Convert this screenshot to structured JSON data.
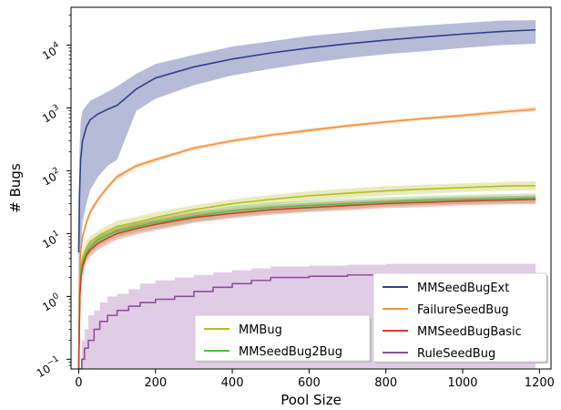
{
  "chart_data": {
    "type": "line",
    "xlabel": "Pool Size",
    "ylabel": "# Bugs",
    "xlim": [
      -20,
      1230
    ],
    "ylim": [
      0.07,
      40000
    ],
    "yscale": "log",
    "x_ticks": [
      0,
      200,
      400,
      600,
      800,
      1000,
      1200
    ],
    "x_tick_labels": [
      "0",
      "200",
      "400",
      "600",
      "800",
      "1000",
      "1200"
    ],
    "y_ticks": [
      0.1,
      1,
      10,
      100,
      1000,
      10000
    ],
    "y_tick_labels": [
      {
        "base": "10",
        "exp": "−1"
      },
      {
        "base": "10",
        "exp": "0"
      },
      {
        "base": "10",
        "exp": "1"
      },
      {
        "base": "10",
        "exp": "2"
      },
      {
        "base": "10",
        "exp": "3"
      },
      {
        "base": "10",
        "exp": "4"
      }
    ],
    "grid": false,
    "legends": [
      {
        "placement": "lower-center",
        "entries": [
          "MMBug",
          "MMSeedBug2Bug"
        ]
      },
      {
        "placement": "lower-right",
        "entries": [
          "MMSeedBugExt",
          "FailureSeedBug",
          "MMSeedBugBasic",
          "RuleSeedBug"
        ]
      }
    ],
    "series": [
      {
        "name": "MMSeedBugExt",
        "color": "#2f3f8c",
        "x": [
          0,
          2,
          5,
          10,
          20,
          30,
          50,
          75,
          100,
          150,
          200,
          300,
          400,
          500,
          600,
          700,
          800,
          900,
          1000,
          1100,
          1190
        ],
        "y": [
          5,
          40,
          150,
          300,
          500,
          650,
          800,
          950,
          1100,
          2000,
          3000,
          4500,
          6000,
          7500,
          9000,
          10500,
          12000,
          13500,
          15000,
          16500,
          17500
        ],
        "lower": [
          0.07,
          1,
          5,
          15,
          30,
          50,
          80,
          120,
          150,
          900,
          1400,
          2300,
          3300,
          4200,
          5200,
          6200,
          7200,
          8000,
          9000,
          10000,
          10500
        ],
        "upper": [
          10,
          200,
          600,
          900,
          1100,
          1300,
          1500,
          1800,
          2200,
          3500,
          5000,
          7000,
          9500,
          11500,
          14000,
          16000,
          18500,
          20500,
          22500,
          24500,
          25000
        ]
      },
      {
        "name": "FailureSeedBug",
        "color": "#f5913a",
        "x": [
          0,
          2,
          5,
          10,
          20,
          30,
          50,
          75,
          100,
          150,
          200,
          300,
          400,
          500,
          600,
          700,
          800,
          900,
          1000,
          1100,
          1190
        ],
        "y": [
          0.07,
          2,
          5,
          9,
          15,
          22,
          35,
          55,
          80,
          120,
          150,
          230,
          300,
          370,
          440,
          520,
          600,
          680,
          760,
          860,
          950
        ],
        "lower": [
          0.07,
          1.5,
          4,
          8,
          13,
          20,
          32,
          50,
          72,
          110,
          138,
          215,
          280,
          345,
          410,
          490,
          565,
          640,
          715,
          800,
          880
        ],
        "upper": [
          0.07,
          2.5,
          6,
          10,
          17,
          25,
          38,
          60,
          88,
          130,
          162,
          245,
          320,
          395,
          470,
          550,
          635,
          720,
          805,
          920,
          1050
        ]
      },
      {
        "name": "MMBug",
        "color": "#b5bd22",
        "x": [
          0,
          3,
          6,
          10,
          20,
          30,
          50,
          75,
          100,
          150,
          200,
          300,
          400,
          500,
          600,
          700,
          800,
          900,
          1000,
          1100,
          1190
        ],
        "y": [
          0.07,
          1.5,
          3,
          4,
          6,
          7.5,
          9,
          11,
          13,
          15,
          18,
          24,
          30,
          35,
          40,
          44,
          48,
          51,
          54,
          57,
          58
        ],
        "lower": [
          0.07,
          1,
          2,
          3,
          4.5,
          5.5,
          7,
          9,
          10.5,
          12,
          15,
          20,
          25,
          29,
          33,
          37,
          40,
          43,
          46,
          48,
          49
        ],
        "upper": [
          0.07,
          2,
          4,
          5.5,
          7.5,
          9,
          11,
          13.5,
          16,
          18.5,
          22,
          28,
          35,
          41,
          47,
          52,
          57,
          60,
          63,
          66,
          68
        ]
      },
      {
        "name": "MMSeedBug2Bug",
        "color": "#4bc244",
        "x": [
          0,
          3,
          6,
          10,
          20,
          30,
          50,
          75,
          100,
          150,
          200,
          300,
          400,
          500,
          600,
          700,
          800,
          900,
          1000,
          1100,
          1190
        ],
        "y": [
          0.07,
          1.2,
          2.5,
          3.5,
          5,
          6,
          8,
          9.5,
          11,
          13,
          15,
          19,
          23,
          26,
          28,
          30,
          32,
          34,
          35,
          36,
          37
        ],
        "lower": [
          0.07,
          0.9,
          1.8,
          2.6,
          4,
          4.8,
          6.2,
          7.5,
          8.8,
          10.5,
          12,
          15.5,
          18.5,
          21,
          23,
          25,
          27,
          28.5,
          29.5,
          30.5,
          31
        ],
        "upper": [
          0.07,
          1.5,
          3.2,
          4.5,
          6.2,
          7.5,
          9.8,
          11.5,
          13.3,
          15.7,
          18,
          22.5,
          27.5,
          31,
          33.5,
          36,
          38,
          40,
          41.5,
          42.5,
          43.5
        ]
      },
      {
        "name": "MMSeedBugBasic",
        "color": "#d83a2c",
        "x": [
          0,
          3,
          6,
          10,
          20,
          30,
          50,
          75,
          100,
          150,
          200,
          300,
          400,
          500,
          600,
          700,
          800,
          900,
          1000,
          1100,
          1190
        ],
        "y": [
          0.07,
          1,
          2,
          3,
          4.5,
          5.5,
          7,
          8.5,
          10,
          12,
          14,
          18,
          21,
          24,
          26,
          28,
          30,
          31.5,
          33,
          34,
          35
        ],
        "lower": [
          0.07,
          0.7,
          1.4,
          2.2,
          3.5,
          4.3,
          5.5,
          6.8,
          8,
          9.7,
          11.3,
          14.8,
          17.5,
          20,
          22,
          23.5,
          25.5,
          26.5,
          28,
          29,
          29.5
        ],
        "upper": [
          0.07,
          1.4,
          2.7,
          4,
          5.8,
          7,
          8.8,
          10.5,
          12.3,
          14.5,
          16.8,
          21.5,
          25,
          28.5,
          31,
          33,
          35,
          37,
          38.5,
          39.5,
          40.5
        ]
      },
      {
        "name": "RuleSeedBug",
        "color": "#8e4f99",
        "x": [
          0,
          8,
          8,
          15,
          15,
          25,
          25,
          40,
          40,
          55,
          55,
          75,
          75,
          100,
          100,
          130,
          130,
          160,
          160,
          200,
          200,
          250,
          250,
          300,
          300,
          350,
          350,
          400,
          400,
          450,
          450,
          500,
          500,
          600,
          600,
          700,
          700,
          800,
          800,
          900,
          900,
          1190
        ],
        "y": [
          0.07,
          0.07,
          0.1,
          0.1,
          0.15,
          0.15,
          0.2,
          0.2,
          0.3,
          0.3,
          0.4,
          0.4,
          0.5,
          0.5,
          0.6,
          0.6,
          0.7,
          0.7,
          0.8,
          0.8,
          0.9,
          0.9,
          1.0,
          1.0,
          1.2,
          1.2,
          1.4,
          1.4,
          1.6,
          1.6,
          1.8,
          1.8,
          2.0,
          2.0,
          2.1,
          2.1,
          2.2,
          2.2,
          2.3,
          2.3,
          2.3,
          2.3
        ],
        "lower": [
          0.07,
          0.07,
          0.07,
          0.07,
          0.07,
          0.07,
          0.07,
          0.07,
          0.07,
          0.07,
          0.07,
          0.07,
          0.07,
          0.07,
          0.07,
          0.07,
          0.07,
          0.07,
          0.07,
          0.07,
          0.07,
          0.07,
          0.07,
          0.07,
          0.07,
          0.07,
          0.07,
          0.07,
          0.07,
          0.07,
          0.07,
          0.07,
          0.07,
          0.07,
          0.07,
          0.07,
          0.07,
          0.07,
          0.07,
          0.07,
          0.07,
          0.07
        ],
        "upper": [
          0.07,
          0.07,
          0.2,
          0.2,
          0.3,
          0.3,
          0.5,
          0.5,
          0.6,
          0.6,
          0.8,
          0.8,
          1.0,
          1.0,
          1.1,
          1.1,
          1.3,
          1.3,
          1.6,
          1.6,
          1.8,
          1.8,
          2.0,
          2.0,
          2.2,
          2.2,
          2.4,
          2.4,
          2.6,
          2.6,
          2.8,
          2.8,
          3.0,
          3.0,
          3.1,
          3.1,
          3.2,
          3.2,
          3.3,
          3.3,
          3.3,
          3.3
        ],
        "band_fill": "#c9a3cf"
      }
    ]
  }
}
